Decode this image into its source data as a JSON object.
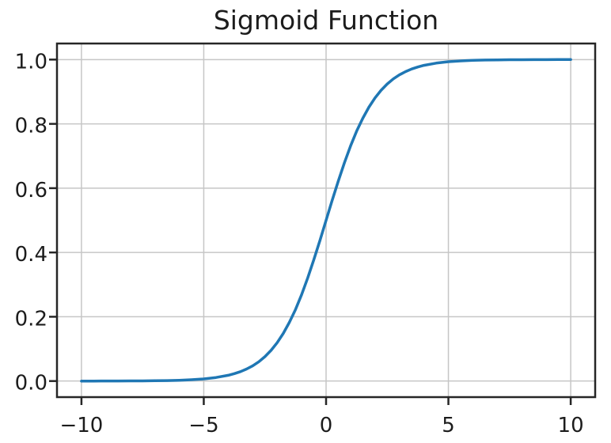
{
  "figure": {
    "background": "#ffffff"
  },
  "chart_data": {
    "type": "line",
    "title": "Sigmoid Function",
    "xlabel": "",
    "ylabel": "",
    "grid": true,
    "legend": false,
    "xlim": [
      -11,
      11
    ],
    "ylim": [
      -0.05,
      1.05
    ],
    "xticks": [
      -10,
      -5,
      0,
      5,
      10
    ],
    "xtick_labels": [
      "−10",
      "−5",
      "0",
      "5",
      "10"
    ],
    "yticks": [
      0.0,
      0.2,
      0.4,
      0.6,
      0.8,
      1.0
    ],
    "ytick_labels": [
      "0.0",
      "0.2",
      "0.4",
      "0.6",
      "0.8",
      "1.0"
    ],
    "x": [
      -10,
      -9.5,
      -9,
      -8.5,
      -8,
      -7.5,
      -7,
      -6.5,
      -6,
      -5.5,
      -5,
      -4.5,
      -4,
      -3.75,
      -3.5,
      -3.25,
      -3,
      -2.75,
      -2.5,
      -2.25,
      -2,
      -1.75,
      -1.5,
      -1.25,
      -1,
      -0.75,
      -0.5,
      -0.25,
      0,
      0.25,
      0.5,
      0.75,
      1,
      1.25,
      1.5,
      1.75,
      2,
      2.25,
      2.5,
      2.75,
      3,
      3.25,
      3.5,
      3.75,
      4,
      4.5,
      5,
      5.5,
      6,
      6.5,
      7,
      7.5,
      8,
      8.5,
      9,
      9.5,
      10
    ],
    "series": [
      {
        "name": "sigmoid",
        "color": "#1f77b4",
        "values": [
          5e-05,
          7e-05,
          0.00012,
          0.0002,
          0.00034,
          0.00055,
          0.00091,
          0.0015,
          0.00247,
          0.00407,
          0.00669,
          0.011,
          0.01799,
          0.02297,
          0.02931,
          0.03732,
          0.04743,
          0.06008,
          0.07586,
          0.09534,
          0.1192,
          0.14805,
          0.18243,
          0.2227,
          0.26894,
          0.32082,
          0.37754,
          0.43782,
          0.5,
          0.56218,
          0.62246,
          0.67918,
          0.73106,
          0.7773,
          0.81757,
          0.85195,
          0.8808,
          0.90465,
          0.92414,
          0.93991,
          0.95257,
          0.96267,
          0.97069,
          0.97702,
          0.98201,
          0.98901,
          0.99331,
          0.99593,
          0.99753,
          0.9985,
          0.99909,
          0.99945,
          0.99966,
          0.9998,
          0.99988,
          0.99993,
          0.99995
        ]
      }
    ],
    "colors": {
      "line": "#1f77b4",
      "grid": "#c6c6c6",
      "spine": "#262626",
      "text": "#1c1c1c"
    }
  }
}
